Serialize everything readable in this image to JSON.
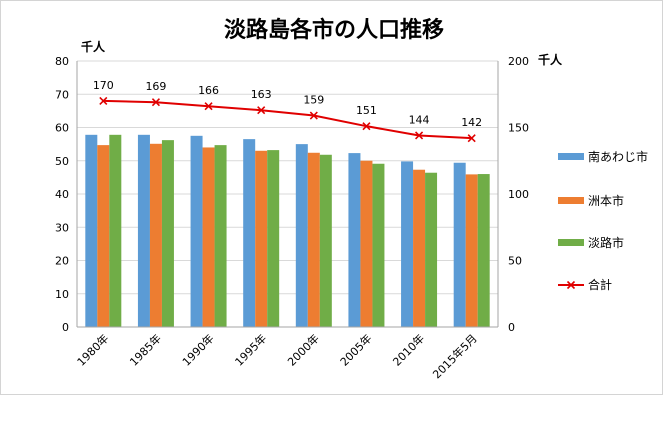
{
  "chart_data": {
    "type": "bar",
    "title": "淡路島各市の人口推移",
    "y_left_unit": "千人",
    "y_right_unit": "千人",
    "ylim_left": [
      0,
      80
    ],
    "ylim_right": [
      0,
      200
    ],
    "yticks_left": [
      "0",
      "10",
      "20",
      "30",
      "40",
      "50",
      "60",
      "70",
      "80"
    ],
    "yticks_right": [
      "0",
      "50",
      "100",
      "150",
      "200"
    ],
    "categories": [
      "1980年",
      "1985年",
      "1990年",
      "1995年",
      "2000年",
      "2005年",
      "2010年",
      "2015年5月"
    ],
    "series": [
      {
        "name": "南あわじ市",
        "type": "bar",
        "axis": "left",
        "color": "#5b9bd5",
        "values": [
          57.8,
          57.8,
          57.5,
          56.5,
          55.0,
          52.3,
          49.8,
          49.4
        ]
      },
      {
        "name": "洲本市",
        "type": "bar",
        "axis": "left",
        "color": "#ed7d31",
        "values": [
          54.7,
          55.1,
          54.0,
          53.0,
          52.4,
          50.0,
          47.3,
          45.9
        ]
      },
      {
        "name": "淡路市",
        "type": "bar",
        "axis": "left",
        "color": "#70ad47",
        "values": [
          57.8,
          56.2,
          54.7,
          53.2,
          51.8,
          49.1,
          46.4,
          46.0
        ]
      },
      {
        "name": "合計",
        "type": "line",
        "axis": "right",
        "color": "#e00000",
        "marker": "x",
        "values": [
          170,
          169,
          166,
          163,
          159,
          151,
          144,
          142
        ],
        "data_labels": [
          "170",
          "169",
          "166",
          "163",
          "159",
          "151",
          "144",
          "142"
        ]
      }
    ],
    "grid": true,
    "legend_position": "right"
  }
}
